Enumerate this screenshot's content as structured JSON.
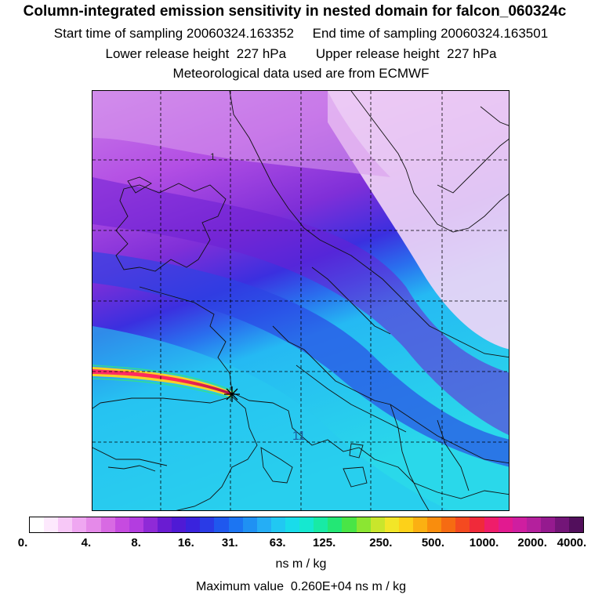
{
  "header": {
    "line1": "Column-integrated emission sensitivity in nested domain for falcon_060324c",
    "line2": "Start time of sampling 20060324.163352     End time of sampling 20060324.163501",
    "line3": "Lower release height  227 hPa        Upper release height  227 hPa",
    "line4": "Meteorological data used are from ECMWF"
  },
  "map": {
    "contour_labels": [
      "1",
      "11"
    ],
    "release_marker": "star"
  },
  "colorbar": {
    "colors": [
      "#ffffff",
      "#fde9fd",
      "#f7c8f7",
      "#efa7f1",
      "#e58ae9",
      "#d86ae3",
      "#c64be0",
      "#b33de0",
      "#8f2ad7",
      "#6a1cd2",
      "#4f1ad5",
      "#3a23dd",
      "#2a3be6",
      "#1f58ee",
      "#1c75f2",
      "#1f91f3",
      "#25aef5",
      "#21c8f2",
      "#19dcea",
      "#15e8d0",
      "#18eaa5",
      "#23e775",
      "#49e546",
      "#8be632",
      "#c9e62c",
      "#f2e628",
      "#fdd119",
      "#fbb012",
      "#f98d0d",
      "#f66b12",
      "#f44a20",
      "#f02a3a",
      "#ef1d6a",
      "#e21a90",
      "#cf1ea0",
      "#b4209d",
      "#951a8f",
      "#731578",
      "#520f5c"
    ],
    "labels": [
      "0.",
      "4.",
      "8.",
      "16.",
      "31.",
      "63.",
      "125.",
      "250.",
      "500.",
      "1000.",
      "2000.",
      "4000."
    ],
    "units": "ns m / kg"
  },
  "footer": {
    "max_value": "Maximum value  0.260E+04 ns m / kg"
  }
}
